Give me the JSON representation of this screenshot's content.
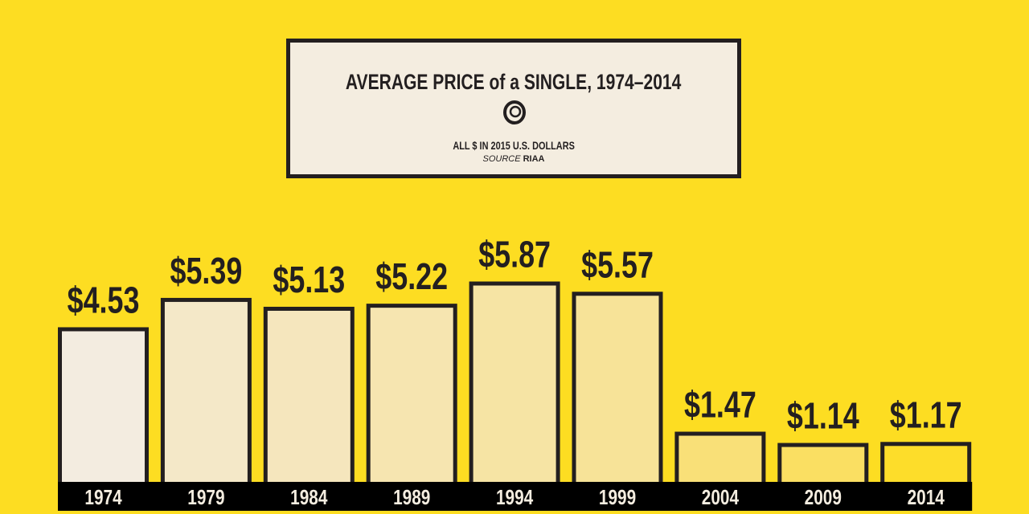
{
  "header": {
    "title": "AVERAGE PRICE of a SINGLE, 1974–2014",
    "subtitle": "ALL $ IN 2015 U.S. DOLLARS",
    "source_label": "SOURCE",
    "source": "RIAA",
    "logo_icon": "spiral-record-icon"
  },
  "colors": {
    "background": "#fddd22",
    "outline": "#231f20",
    "axis_band": "#000000"
  },
  "chart_data": {
    "type": "bar",
    "title": "AVERAGE PRICE of a SINGLE, 1974–2014",
    "subtitle": "ALL $ IN 2015 U.S. DOLLARS",
    "categories": [
      "1974",
      "1979",
      "1984",
      "1989",
      "1994",
      "1999",
      "2004",
      "2009",
      "2014"
    ],
    "values": [
      4.53,
      5.39,
      5.13,
      5.22,
      5.87,
      5.57,
      1.47,
      1.14,
      1.17
    ],
    "labels": [
      "$4.53",
      "$5.39",
      "$5.13",
      "$5.22",
      "$5.87",
      "$5.57",
      "$1.47",
      "$1.14",
      "$1.17"
    ],
    "bar_colors": [
      "#f3ece0",
      "#f4e8c8",
      "#f5e6bd",
      "#f6e5b0",
      "#f6e4a4",
      "#f7e398",
      "#f9e078",
      "#fadf62",
      "#fddd2a"
    ],
    "ylim": [
      0,
      6
    ],
    "grid": false,
    "xlabel": "",
    "ylabel": ""
  }
}
